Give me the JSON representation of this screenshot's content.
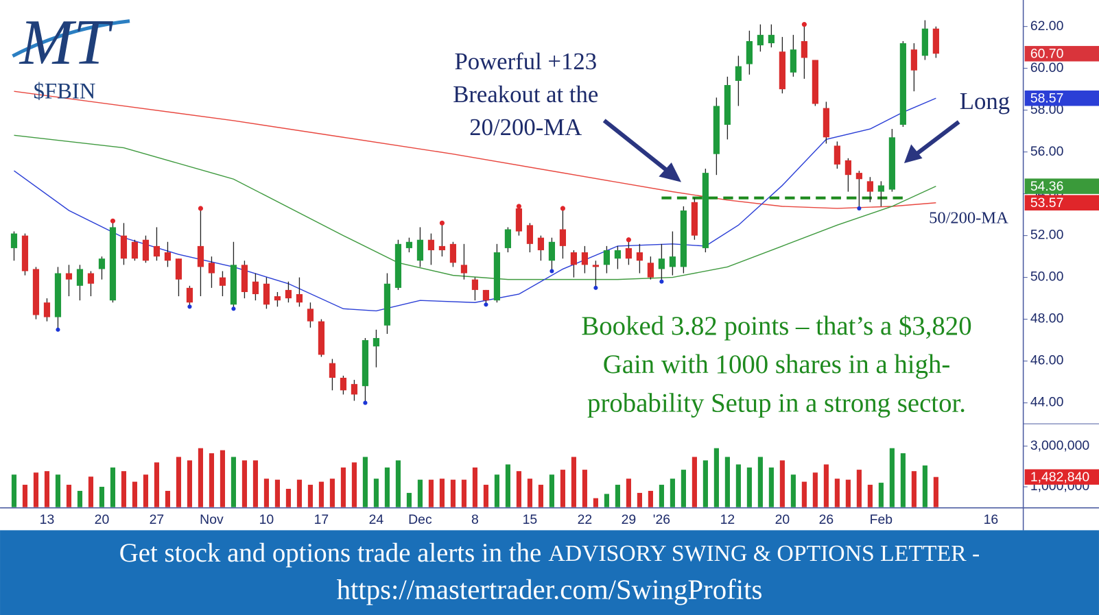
{
  "logo": "MT",
  "chart_data": {
    "type": "candlestick",
    "title": "$FBIN",
    "categories": [
      null,
      null,
      null,
      "13",
      null,
      null,
      null,
      null,
      "20",
      null,
      null,
      null,
      null,
      "27",
      null,
      null,
      null,
      null,
      "Nov",
      null,
      null,
      null,
      null,
      "10",
      null,
      null,
      null,
      null,
      "17",
      null,
      null,
      null,
      null,
      "24",
      null,
      null,
      null,
      "Dec",
      null,
      null,
      null,
      null,
      "8",
      null,
      null,
      null,
      null,
      "15",
      null,
      null,
      null,
      null,
      "22",
      null,
      null,
      null,
      "29",
      null,
      null,
      "'26",
      null,
      null,
      null,
      null,
      null,
      "12",
      null,
      null,
      null,
      null,
      "20",
      null,
      null,
      null,
      "26",
      null,
      null,
      null,
      null,
      "Feb",
      null,
      null,
      null,
      null,
      null,
      null,
      null,
      null,
      null,
      "16"
    ],
    "open": [
      51.4,
      52.0,
      50.4,
      48.8,
      48.1,
      50.2,
      49.6,
      50.2,
      50.4,
      48.9,
      52.0,
      51.7,
      51.8,
      51.5,
      51.2,
      50.9,
      49.5,
      51.5,
      50.7,
      50.0,
      48.7,
      50.6,
      49.8,
      49.7,
      49.1,
      49.4,
      49.2,
      48.5,
      47.9,
      45.9,
      45.2,
      44.9,
      44.8,
      46.7,
      47.7,
      49.5,
      51.4,
      50.8,
      51.8,
      51.5,
      51.6,
      50.6,
      49.9,
      49.4,
      48.9,
      51.4,
      53.3,
      52.5,
      51.9,
      50.8,
      52.3,
      51.2,
      51.2,
      50.6,
      50.6,
      50.9,
      51.4,
      51.2,
      50.7,
      50.4,
      50.5,
      50.5,
      53.6,
      51.4,
      55.9,
      57.3,
      59.4,
      60.2,
      61.1,
      61.2,
      60.8,
      59.8,
      61.3,
      60.4,
      58.1,
      56.3,
      55.6,
      55.0,
      54.6,
      54.1,
      54.2,
      57.3,
      60.9,
      60.6,
      61.9,
      null,
      null,
      null,
      null,
      null
    ],
    "high": [
      52.2,
      52.1,
      50.5,
      49.0,
      50.5,
      50.6,
      50.6,
      50.3,
      51.0,
      52.7,
      52.6,
      51.8,
      52.0,
      52.4,
      51.7,
      50.9,
      49.6,
      53.3,
      51.0,
      50.3,
      51.7,
      50.8,
      50.2,
      50.0,
      49.3,
      49.8,
      50.0,
      48.8,
      48.0,
      46.1,
      45.3,
      45.1,
      47.1,
      47.5,
      50.2,
      51.8,
      51.9,
      52.4,
      52.1,
      52.6,
      51.7,
      51.6,
      50.0,
      49.4,
      51.6,
      52.4,
      53.4,
      52.6,
      52.0,
      51.9,
      53.3,
      51.3,
      51.5,
      50.8,
      51.5,
      51.5,
      51.8,
      51.6,
      51.0,
      51.6,
      52.2,
      53.4,
      53.8,
      55.2,
      58.6,
      59.6,
      60.6,
      61.8,
      62.1,
      62.1,
      61.5,
      61.6,
      62.1,
      60.4,
      58.4,
      56.5,
      55.7,
      55.1,
      54.8,
      54.6,
      57.1,
      61.3,
      61.2,
      62.3,
      62.0,
      null,
      null,
      null,
      null,
      null
    ],
    "low": [
      50.8,
      50.1,
      48.0,
      47.9,
      47.5,
      49.1,
      48.9,
      49.1,
      49.9,
      48.8,
      50.6,
      50.8,
      50.7,
      50.8,
      50.5,
      49.1,
      48.6,
      49.1,
      49.5,
      49.1,
      48.5,
      49.0,
      48.9,
      48.5,
      48.6,
      48.8,
      48.6,
      47.6,
      46.2,
      44.6,
      44.4,
      44.1,
      44.0,
      45.7,
      47.3,
      49.4,
      51.2,
      50.5,
      50.6,
      51.0,
      50.5,
      49.9,
      48.9,
      48.7,
      48.8,
      51.2,
      52.0,
      51.2,
      50.8,
      50.3,
      50.9,
      50.0,
      50.2,
      49.5,
      50.2,
      50.4,
      50.6,
      50.2,
      49.9,
      49.8,
      50.1,
      50.2,
      51.8,
      51.2,
      54.9,
      56.6,
      58.2,
      59.7,
      60.8,
      61.0,
      58.8,
      59.6,
      59.5,
      58.2,
      56.4,
      55.2,
      54.1,
      53.3,
      53.6,
      53.4,
      54.1,
      57.2,
      58.9,
      60.4,
      60.5,
      null,
      null,
      null,
      null,
      null
    ],
    "close": [
      52.1,
      50.3,
      48.2,
      48.1,
      50.2,
      49.9,
      50.4,
      49.7,
      50.9,
      52.4,
      50.9,
      50.9,
      50.8,
      51.0,
      50.8,
      49.9,
      48.8,
      50.5,
      50.2,
      49.6,
      50.6,
      49.3,
      49.2,
      48.7,
      48.9,
      49.0,
      48.8,
      47.9,
      46.3,
      45.2,
      44.6,
      44.4,
      47.0,
      47.1,
      49.7,
      51.6,
      51.7,
      51.8,
      51.3,
      51.3,
      50.7,
      50.2,
      49.4,
      48.9,
      51.2,
      52.3,
      52.2,
      51.6,
      51.3,
      51.7,
      51.5,
      50.6,
      50.6,
      50.5,
      51.3,
      51.3,
      50.9,
      50.8,
      50.0,
      50.9,
      51.0,
      53.2,
      52.0,
      55.0,
      58.2,
      59.2,
      60.1,
      61.3,
      61.6,
      61.6,
      59.0,
      60.9,
      60.5,
      58.3,
      56.7,
      55.4,
      54.9,
      54.7,
      54.1,
      54.4,
      56.7,
      61.2,
      59.9,
      61.9,
      60.7,
      null,
      null,
      null,
      null,
      null
    ],
    "volume": [
      1600000,
      1100000,
      1700000,
      1770000,
      1600000,
      1100000,
      800000,
      1500000,
      1000000,
      1950000,
      1770000,
      1250000,
      1600000,
      2200000,
      800000,
      2470000,
      2300000,
      2900000,
      2650000,
      2800000,
      2470000,
      2300000,
      2300000,
      1400000,
      1350000,
      900000,
      1350000,
      1100000,
      1250000,
      1400000,
      1950000,
      2200000,
      2470000,
      1400000,
      1950000,
      2300000,
      700000,
      1350000,
      1350000,
      1400000,
      1350000,
      1350000,
      1950000,
      1100000,
      1600000,
      2100000,
      1770000,
      1400000,
      1100000,
      1600000,
      1840000,
      2470000,
      1840000,
      440000,
      650000,
      1100000,
      1400000,
      700000,
      800000,
      1100000,
      1400000,
      1840000,
      2470000,
      2300000,
      2900000,
      2470000,
      2100000,
      1950000,
      2470000,
      1950000,
      2300000,
      1600000,
      1250000,
      1700000,
      2100000,
      1400000,
      1350000,
      1840000,
      1100000,
      1200000,
      2900000,
      2650000,
      1770000,
      2050000,
      1482840,
      null,
      null,
      null,
      null,
      null
    ],
    "up_color": "#1e9b3c",
    "down_color": "#d92b2b",
    "pivot_highs": [
      9,
      17,
      39,
      46,
      50,
      56,
      72
    ],
    "pivot_high_color": "#e0262a",
    "pivot_lows": [
      4,
      16,
      20,
      32,
      43,
      49,
      53,
      59,
      77
    ],
    "pivot_low_color": "#1c36d6",
    "moving_averages": [
      {
        "color": "#e8473f",
        "x": [
          0,
          10,
          20,
          30,
          40,
          50,
          60,
          65,
          70,
          75,
          80,
          84
        ],
        "values": [
          58.9,
          58.2,
          57.5,
          56.7,
          55.9,
          55.0,
          54.1,
          53.7,
          53.4,
          53.3,
          53.4,
          53.57
        ]
      },
      {
        "color": "#3f9a3f",
        "x": [
          0,
          10,
          20,
          30,
          35,
          40,
          45,
          50,
          55,
          60,
          65,
          70,
          75,
          80,
          84
        ],
        "values": [
          56.8,
          56.2,
          54.7,
          52.0,
          50.7,
          50.1,
          49.9,
          49.9,
          49.9,
          50.0,
          50.5,
          51.5,
          52.5,
          53.4,
          54.36
        ]
      },
      {
        "color": "#2b3fd6",
        "x": [
          0,
          5,
          10,
          15,
          20,
          25,
          30,
          33,
          37,
          42,
          46,
          50,
          55,
          60,
          63,
          66,
          70,
          74,
          78,
          81,
          84
        ],
        "values": [
          55.1,
          53.2,
          51.9,
          51.1,
          50.5,
          49.7,
          48.5,
          48.4,
          48.9,
          48.8,
          49.2,
          50.4,
          51.5,
          51.6,
          51.5,
          52.5,
          54.4,
          56.6,
          57.1,
          57.9,
          58.57
        ]
      }
    ],
    "last_values": [
      {
        "value": 60.7,
        "label": "60.70",
        "color": "#d9343b"
      },
      {
        "value": 58.57,
        "label": "58.57",
        "color": "#2b3fd6"
      },
      {
        "value": 54.36,
        "label": "54.36",
        "color": "#3a9a3a"
      },
      {
        "value": 53.57,
        "label": "53.57",
        "color": "#e0262a"
      }
    ],
    "volume_last": {
      "value": 1482840,
      "label": "1,482,840",
      "color": "#e0262a"
    },
    "breakout_line": {
      "value": 53.8,
      "x": [
        59,
        81
      ],
      "color": "#1e8a1e"
    },
    "ylim": [
      43.0,
      63.1
    ],
    "yticks": [
      {
        "value": 44,
        "label": "44.00"
      },
      {
        "value": 46,
        "label": "46.00"
      },
      {
        "value": 48,
        "label": "48.00"
      },
      {
        "value": 50,
        "label": "50.00"
      },
      {
        "value": 52,
        "label": "52.00"
      },
      {
        "value": 54,
        "label": "54.00"
      },
      {
        "value": 56,
        "label": "56.00"
      },
      {
        "value": 58,
        "label": "58.00"
      },
      {
        "value": 60,
        "label": "60.00"
      },
      {
        "value": 62,
        "label": "62.00"
      }
    ],
    "vlim": [
      0,
      4100000
    ],
    "vticks": [
      {
        "value": 1000000,
        "label": "1,000,000"
      },
      {
        "value": 3000000,
        "label": "3,000,000"
      }
    ],
    "annotations": {
      "breakout": [
        "Powerful +123",
        "Breakout at the",
        "20/200-MA"
      ],
      "long": "Long",
      "ma": "50/200-MA",
      "booked": [
        "Booked 3.82 points – that’s a $3,820",
        "Gain with 1000 shares in a high-",
        "probability Setup in a strong sector."
      ]
    }
  },
  "footer": {
    "line1": [
      "Get stock and options trade alerts in the",
      "ADVISORY SWING & OPTIONS LETTER -"
    ],
    "line2": "https://mastertrader.com/SwingProfits"
  }
}
